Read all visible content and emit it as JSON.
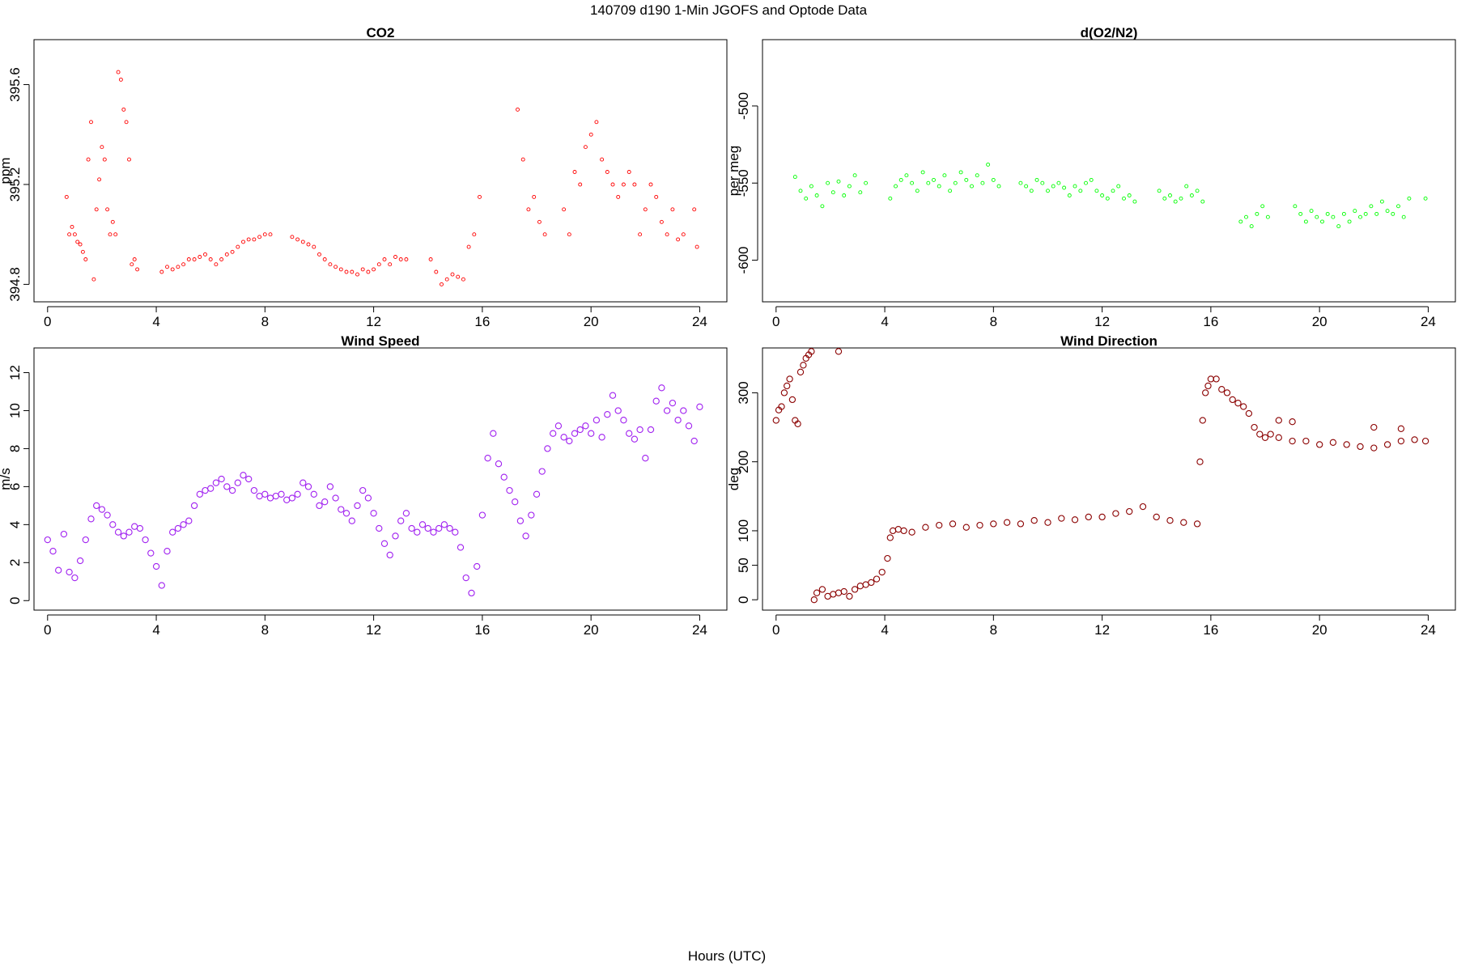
{
  "figure": {
    "title": "140709   d190   1-Min  JGOFS and Optode Data",
    "xlabel": "Hours (UTC)"
  },
  "chart_data": [
    {
      "id": "co2",
      "type": "scatter",
      "title": "CO2",
      "ylabel": "ppm",
      "color": "#ff0000",
      "marker_size": "small",
      "xlim": [
        -0.5,
        25
      ],
      "ylim": [
        394.73,
        395.78
      ],
      "xticks": [
        0,
        4,
        8,
        12,
        16,
        20,
        24
      ],
      "yticks": [
        394.8,
        395.2,
        395.6
      ],
      "ytick_labels": [
        "394.8",
        "395.2",
        "395.6"
      ],
      "x": [
        0.7,
        0.8,
        0.9,
        1.0,
        1.1,
        1.2,
        1.3,
        1.4,
        1.5,
        1.6,
        1.7,
        1.8,
        1.9,
        2.0,
        2.1,
        2.2,
        2.3,
        2.4,
        2.5,
        2.6,
        2.7,
        2.8,
        2.9,
        3.0,
        3.1,
        3.2,
        3.3,
        4.2,
        4.4,
        4.6,
        4.8,
        5.0,
        5.2,
        5.4,
        5.6,
        5.8,
        6.0,
        6.2,
        6.4,
        6.6,
        6.8,
        7.0,
        7.2,
        7.4,
        7.6,
        7.8,
        8.0,
        8.2,
        9.0,
        9.2,
        9.4,
        9.6,
        9.8,
        10.0,
        10.2,
        10.4,
        10.6,
        10.8,
        11.0,
        11.2,
        11.4,
        11.6,
        11.8,
        12.0,
        12.2,
        12.4,
        12.6,
        12.8,
        13.0,
        13.2,
        14.1,
        14.3,
        14.5,
        14.7,
        14.9,
        15.1,
        15.3,
        15.5,
        15.7,
        15.9,
        17.3,
        17.5,
        17.7,
        17.9,
        18.1,
        18.3,
        19.0,
        19.2,
        19.4,
        19.6,
        19.8,
        20.0,
        20.2,
        20.4,
        20.6,
        20.8,
        21.0,
        21.2,
        21.4,
        21.6,
        21.8,
        22.0,
        22.2,
        22.4,
        22.6,
        22.8,
        23.0,
        23.2,
        23.4,
        23.8,
        23.9
      ],
      "y": [
        395.15,
        395.0,
        395.03,
        395.0,
        394.97,
        394.96,
        394.93,
        394.9,
        395.3,
        395.45,
        394.82,
        395.1,
        395.22,
        395.35,
        395.3,
        395.1,
        395.0,
        395.05,
        395.0,
        395.65,
        395.62,
        395.5,
        395.45,
        395.3,
        394.88,
        394.9,
        394.86,
        394.85,
        394.87,
        394.86,
        394.87,
        394.88,
        394.9,
        394.9,
        394.91,
        394.92,
        394.9,
        394.88,
        394.9,
        394.92,
        394.93,
        394.95,
        394.97,
        394.98,
        394.98,
        394.99,
        395.0,
        395.0,
        394.99,
        394.98,
        394.97,
        394.96,
        394.95,
        394.92,
        394.9,
        394.88,
        394.87,
        394.86,
        394.85,
        394.85,
        394.84,
        394.86,
        394.85,
        394.86,
        394.88,
        394.9,
        394.88,
        394.91,
        394.9,
        394.9,
        394.9,
        394.85,
        394.8,
        394.82,
        394.84,
        394.83,
        394.82,
        394.95,
        395.0,
        395.15,
        395.5,
        395.3,
        395.1,
        395.15,
        395.05,
        395.0,
        395.1,
        395.0,
        395.25,
        395.2,
        395.35,
        395.4,
        395.45,
        395.3,
        395.25,
        395.2,
        395.15,
        395.2,
        395.25,
        395.2,
        395.0,
        395.1,
        395.2,
        395.15,
        395.05,
        395.0,
        395.1,
        394.98,
        395.0,
        395.1,
        394.95
      ]
    },
    {
      "id": "o2n2",
      "type": "scatter",
      "title": "d(O2/N2)",
      "ylabel": "per meg",
      "color": "#00ff00",
      "marker_size": "small",
      "xlim": [
        -0.5,
        25
      ],
      "ylim": [
        -627,
        -457
      ],
      "xticks": [
        0,
        4,
        8,
        12,
        16,
        20,
        24
      ],
      "yticks": [
        -600,
        -550,
        -500
      ],
      "ytick_labels": [
        "-600",
        "-550",
        "-500"
      ],
      "x": [
        0.7,
        0.9,
        1.1,
        1.3,
        1.5,
        1.7,
        1.9,
        2.1,
        2.3,
        2.5,
        2.7,
        2.9,
        3.1,
        3.3,
        4.2,
        4.4,
        4.6,
        4.8,
        5.0,
        5.2,
        5.4,
        5.6,
        5.8,
        6.0,
        6.2,
        6.4,
        6.6,
        6.8,
        7.0,
        7.2,
        7.4,
        7.6,
        7.8,
        8.0,
        8.2,
        9.0,
        9.2,
        9.4,
        9.6,
        9.8,
        10.0,
        10.2,
        10.4,
        10.6,
        10.8,
        11.0,
        11.2,
        11.4,
        11.6,
        11.8,
        12.0,
        12.2,
        12.4,
        12.6,
        12.8,
        13.0,
        13.2,
        14.1,
        14.3,
        14.5,
        14.7,
        14.9,
        15.1,
        15.3,
        15.5,
        15.7,
        17.1,
        17.3,
        17.5,
        17.7,
        17.9,
        18.1,
        19.1,
        19.3,
        19.5,
        19.7,
        19.9,
        20.1,
        20.3,
        20.5,
        20.7,
        20.9,
        21.1,
        21.3,
        21.5,
        21.7,
        21.9,
        22.1,
        22.3,
        22.5,
        22.7,
        22.9,
        23.1,
        23.3,
        23.9
      ],
      "y": [
        -546,
        -555,
        -560,
        -552,
        -558,
        -565,
        -550,
        -556,
        -549,
        -558,
        -552,
        -545,
        -556,
        -550,
        -560,
        -552,
        -548,
        -545,
        -550,
        -555,
        -543,
        -550,
        -548,
        -552,
        -545,
        -555,
        -550,
        -543,
        -548,
        -552,
        -545,
        -550,
        -538,
        -548,
        -552,
        -550,
        -552,
        -555,
        -548,
        -550,
        -555,
        -552,
        -550,
        -553,
        -558,
        -552,
        -555,
        -550,
        -548,
        -555,
        -558,
        -560,
        -555,
        -552,
        -560,
        -558,
        -562,
        -555,
        -560,
        -558,
        -562,
        -560,
        -552,
        -558,
        -555,
        -562,
        -575,
        -572,
        -578,
        -570,
        -565,
        -572,
        -565,
        -570,
        -575,
        -568,
        -572,
        -575,
        -570,
        -572,
        -578,
        -570,
        -575,
        -568,
        -572,
        -570,
        -565,
        -570,
        -562,
        -568,
        -570,
        -565,
        -572,
        -560,
        -560
      ]
    },
    {
      "id": "wind-speed",
      "type": "scatter",
      "title": "Wind Speed",
      "ylabel": "m/s",
      "color": "#a020f0",
      "marker_size": "large",
      "xlim": [
        -0.5,
        25
      ],
      "ylim": [
        -0.5,
        13.3
      ],
      "xticks": [
        0,
        4,
        8,
        12,
        16,
        20,
        24
      ],
      "yticks": [
        0,
        2,
        4,
        6,
        8,
        10,
        12
      ],
      "ytick_labels": [
        "0",
        "2",
        "4",
        "6",
        "8",
        "10",
        "12"
      ],
      "x": [
        0.0,
        0.2,
        0.4,
        0.6,
        0.8,
        1.0,
        1.2,
        1.4,
        1.6,
        1.8,
        2.0,
        2.2,
        2.4,
        2.6,
        2.8,
        3.0,
        3.2,
        3.4,
        3.6,
        3.8,
        4.0,
        4.2,
        4.4,
        4.6,
        4.8,
        5.0,
        5.2,
        5.4,
        5.6,
        5.8,
        6.0,
        6.2,
        6.4,
        6.6,
        6.8,
        7.0,
        7.2,
        7.4,
        7.6,
        7.8,
        8.0,
        8.2,
        8.4,
        8.6,
        8.8,
        9.0,
        9.2,
        9.4,
        9.6,
        9.8,
        10.0,
        10.2,
        10.4,
        10.6,
        10.8,
        11.0,
        11.2,
        11.4,
        11.6,
        11.8,
        12.0,
        12.2,
        12.4,
        12.6,
        12.8,
        13.0,
        13.2,
        13.4,
        13.6,
        13.8,
        14.0,
        14.2,
        14.4,
        14.6,
        14.8,
        15.0,
        15.2,
        15.4,
        15.6,
        15.8,
        16.0,
        16.2,
        16.4,
        16.6,
        16.8,
        17.0,
        17.2,
        17.4,
        17.6,
        17.8,
        18.0,
        18.2,
        18.4,
        18.6,
        18.8,
        19.0,
        19.2,
        19.4,
        19.6,
        19.8,
        20.0,
        20.2,
        20.4,
        20.6,
        20.8,
        21.0,
        21.2,
        21.4,
        21.6,
        21.8,
        22.0,
        22.2,
        22.4,
        22.6,
        22.8,
        23.0,
        23.2,
        23.4,
        23.6,
        23.8,
        24.0
      ],
      "y": [
        3.2,
        2.6,
        1.6,
        3.5,
        1.5,
        1.2,
        2.1,
        3.2,
        4.3,
        5.0,
        4.8,
        4.5,
        4.0,
        3.6,
        3.4,
        3.6,
        3.9,
        3.8,
        3.2,
        2.5,
        1.8,
        0.8,
        2.6,
        3.6,
        3.8,
        4.0,
        4.2,
        5.0,
        5.6,
        5.8,
        5.9,
        6.2,
        6.4,
        6.0,
        5.8,
        6.2,
        6.6,
        6.4,
        5.8,
        5.5,
        5.6,
        5.4,
        5.5,
        5.6,
        5.3,
        5.4,
        5.6,
        6.2,
        6.0,
        5.6,
        5.0,
        5.2,
        6.0,
        5.4,
        4.8,
        4.6,
        4.2,
        5.0,
        5.8,
        5.4,
        4.6,
        3.8,
        3.0,
        2.4,
        3.4,
        4.2,
        4.6,
        3.8,
        3.6,
        4.0,
        3.8,
        3.6,
        3.8,
        4.0,
        3.8,
        3.6,
        2.8,
        1.2,
        0.4,
        1.8,
        4.5,
        7.5,
        8.8,
        7.2,
        6.5,
        5.8,
        5.2,
        4.2,
        3.4,
        4.5,
        5.6,
        6.8,
        8.0,
        8.8,
        9.2,
        8.6,
        8.4,
        8.8,
        9.0,
        9.2,
        8.8,
        9.5,
        8.6,
        9.8,
        10.8,
        10.0,
        9.5,
        8.8,
        8.5,
        9.0,
        7.5,
        9.0,
        10.5,
        11.2,
        10.0,
        10.4,
        9.5,
        10.0,
        9.2,
        8.4,
        10.2
      ]
    },
    {
      "id": "wind-direction",
      "type": "scatter",
      "title": "Wind Direction",
      "ylabel": "deg",
      "color": "#8b0000",
      "marker_size": "large",
      "xlim": [
        -0.5,
        25
      ],
      "ylim": [
        -15,
        365
      ],
      "xticks": [
        0,
        4,
        8,
        12,
        16,
        20,
        24
      ],
      "yticks": [
        0,
        50,
        100,
        200,
        300
      ],
      "ytick_labels": [
        "0",
        "50",
        "100",
        "200",
        "300"
      ],
      "x": [
        0.0,
        0.1,
        0.2,
        0.3,
        0.4,
        0.5,
        0.6,
        0.7,
        0.8,
        0.9,
        1.0,
        1.1,
        1.2,
        1.3,
        1.4,
        1.5,
        1.7,
        1.9,
        2.1,
        2.3,
        2.5,
        2.7,
        2.9,
        3.1,
        3.3,
        3.5,
        3.7,
        3.9,
        4.1,
        4.2,
        4.3,
        4.5,
        4.7,
        5.0,
        5.5,
        6.0,
        6.5,
        7.0,
        7.5,
        8.0,
        8.5,
        9.0,
        9.5,
        10.0,
        10.5,
        11.0,
        11.5,
        12.0,
        12.5,
        13.0,
        13.5,
        14.0,
        14.5,
        15.0,
        15.5,
        15.6,
        15.7,
        15.8,
        15.9,
        16.0,
        16.2,
        16.4,
        16.6,
        16.8,
        17.0,
        17.2,
        17.4,
        17.6,
        17.8,
        18.0,
        18.2,
        18.5,
        19.0,
        19.5,
        20.0,
        20.5,
        21.0,
        21.5,
        22.0,
        22.5,
        23.0,
        23.5,
        23.9,
        2.3,
        18.5,
        19.0,
        22.0,
        23.0
      ],
      "y": [
        260,
        275,
        280,
        300,
        310,
        320,
        290,
        260,
        255,
        330,
        340,
        350,
        355,
        360,
        0,
        10,
        15,
        5,
        8,
        10,
        12,
        5,
        15,
        20,
        22,
        25,
        30,
        40,
        60,
        90,
        100,
        102,
        100,
        98,
        105,
        108,
        110,
        105,
        108,
        110,
        112,
        110,
        115,
        112,
        118,
        116,
        120,
        120,
        125,
        128,
        135,
        120,
        115,
        112,
        110,
        200,
        260,
        300,
        310,
        320,
        320,
        305,
        300,
        290,
        285,
        280,
        270,
        250,
        240,
        235,
        240,
        235,
        230,
        230,
        225,
        228,
        225,
        222,
        220,
        225,
        230,
        232,
        230,
        360,
        260,
        258,
        250,
        248
      ]
    }
  ]
}
